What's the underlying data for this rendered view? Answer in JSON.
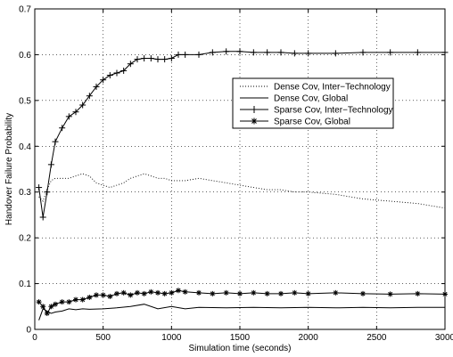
{
  "chart_data": {
    "type": "line",
    "title": "",
    "xlabel": "Simulation time (seconds)",
    "ylabel": "Handover Failure Probability",
    "xlim": [
      0,
      3000
    ],
    "ylim": [
      0,
      0.7
    ],
    "xticks": [
      "0",
      "500",
      "1000",
      "1500",
      "2000",
      "2500",
      "3000"
    ],
    "yticks": [
      "0",
      "0.1",
      "0.2",
      "0.3",
      "0.4",
      "0.5",
      "0.6",
      "0.7"
    ],
    "grid": true,
    "legend_position": "upper-right",
    "series": [
      {
        "name": "Dense Cov, Inter−Technology",
        "style": "dotted",
        "x": [
          30,
          60,
          90,
          120,
          150,
          200,
          250,
          300,
          350,
          400,
          450,
          500,
          550,
          600,
          650,
          700,
          750,
          800,
          850,
          900,
          950,
          1000,
          1100,
          1200,
          1300,
          1400,
          1500,
          1600,
          1700,
          1800,
          1900,
          2000,
          2200,
          2400,
          2600,
          2800,
          3000
        ],
        "y": [
          0.29,
          0.28,
          0.305,
          0.325,
          0.33,
          0.33,
          0.33,
          0.335,
          0.34,
          0.335,
          0.32,
          0.315,
          0.31,
          0.315,
          0.32,
          0.33,
          0.335,
          0.34,
          0.335,
          0.33,
          0.33,
          0.325,
          0.325,
          0.33,
          0.325,
          0.32,
          0.315,
          0.31,
          0.305,
          0.305,
          0.3,
          0.3,
          0.295,
          0.285,
          0.28,
          0.275,
          0.265
        ]
      },
      {
        "name": "Dense Cov, Global",
        "style": "solid",
        "x": [
          30,
          60,
          90,
          120,
          150,
          200,
          250,
          300,
          350,
          400,
          500,
          600,
          700,
          800,
          900,
          1000,
          1100,
          1200,
          1400,
          1600,
          1800,
          2000,
          2200,
          2400,
          2600,
          2800,
          3000
        ],
        "y": [
          0.02,
          0.045,
          0.04,
          0.035,
          0.038,
          0.04,
          0.045,
          0.043,
          0.045,
          0.044,
          0.045,
          0.047,
          0.05,
          0.055,
          0.045,
          0.05,
          0.045,
          0.048,
          0.047,
          0.048,
          0.047,
          0.048,
          0.047,
          0.048,
          0.047,
          0.048,
          0.048
        ]
      },
      {
        "name": "Sparse Cov, Inter−Technology",
        "style": "solid-plus",
        "x": [
          30,
          60,
          90,
          120,
          150,
          200,
          250,
          300,
          350,
          400,
          450,
          500,
          550,
          600,
          650,
          700,
          750,
          800,
          850,
          900,
          950,
          1000,
          1050,
          1100,
          1200,
          1300,
          1400,
          1500,
          1600,
          1700,
          1800,
          1900,
          2000,
          2200,
          2400,
          2600,
          2800,
          3000
        ],
        "y": [
          0.31,
          0.245,
          0.3,
          0.36,
          0.41,
          0.44,
          0.465,
          0.475,
          0.49,
          0.51,
          0.53,
          0.545,
          0.555,
          0.56,
          0.565,
          0.58,
          0.59,
          0.592,
          0.592,
          0.59,
          0.59,
          0.592,
          0.6,
          0.6,
          0.6,
          0.605,
          0.607,
          0.607,
          0.605,
          0.605,
          0.605,
          0.603,
          0.603,
          0.603,
          0.605,
          0.605,
          0.605,
          0.605
        ]
      },
      {
        "name": "Sparse Cov, Global",
        "style": "solid-star",
        "x": [
          30,
          60,
          90,
          120,
          150,
          200,
          250,
          300,
          350,
          400,
          450,
          500,
          550,
          600,
          650,
          700,
          750,
          800,
          850,
          900,
          950,
          1000,
          1050,
          1100,
          1200,
          1300,
          1400,
          1500,
          1600,
          1700,
          1800,
          1900,
          2000,
          2200,
          2400,
          2600,
          2800,
          3000
        ],
        "y": [
          0.06,
          0.05,
          0.035,
          0.05,
          0.055,
          0.06,
          0.06,
          0.065,
          0.065,
          0.07,
          0.075,
          0.075,
          0.072,
          0.078,
          0.08,
          0.075,
          0.08,
          0.078,
          0.082,
          0.08,
          0.078,
          0.08,
          0.085,
          0.082,
          0.08,
          0.078,
          0.08,
          0.078,
          0.08,
          0.078,
          0.078,
          0.08,
          0.078,
          0.08,
          0.078,
          0.077,
          0.078,
          0.077
        ]
      }
    ]
  }
}
